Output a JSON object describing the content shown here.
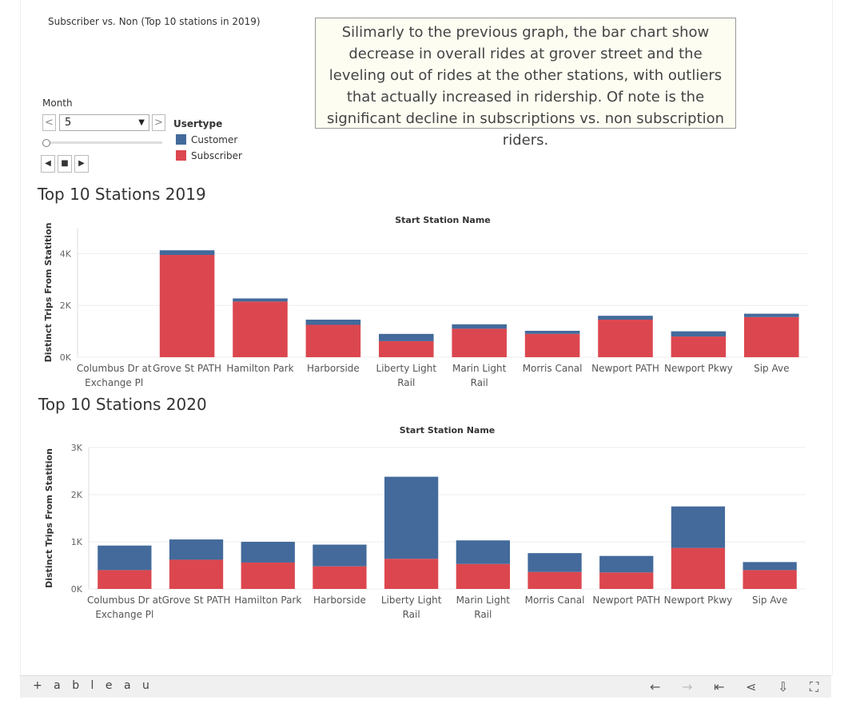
{
  "subtitle": "Subscriber vs. Non (Top 10 stations in 2019)",
  "annotation": "Silimarly to the previous graph, the bar chart show decrease in overall rides at grover street and the leveling out of rides at the other stations, with outliers that actually increased in ridership. Of note is the significant decline in subscriptions vs. non subscription riders.",
  "filter": {
    "title": "Month",
    "value": "5",
    "prev": "<",
    "next": ">"
  },
  "legend": {
    "title": "Usertype",
    "items": [
      {
        "label": "Customer",
        "color": "#436a9b"
      },
      {
        "label": "Subscriber",
        "color": "#dc474f"
      }
    ]
  },
  "footer": {
    "logo": "+ a b l e a u"
  },
  "chart_data": [
    {
      "type": "bar",
      "title": "Top 10 Stations 2019",
      "column_header": "Start Station Name",
      "ylabel": "Distinct Trips From Statition",
      "ylim": [
        0,
        5000
      ],
      "yticks": [
        0,
        2000,
        4000
      ],
      "ytick_labels": [
        "0K",
        "2K",
        "4K"
      ],
      "categories": [
        "Columbus Dr at Exchange Pl",
        "Grove St PATH",
        "Hamilton Park",
        "Harborside",
        "Liberty Light Rail",
        "Marin Light Rail",
        "Morris Canal",
        "Newport PATH",
        "Newport Pkwy",
        "Sip Ave"
      ],
      "series": [
        {
          "name": "Subscriber",
          "color": "#dc474f",
          "values": [
            0,
            3950,
            2150,
            1250,
            620,
            1100,
            900,
            1450,
            800,
            1550
          ]
        },
        {
          "name": "Customer",
          "color": "#436a9b",
          "values": [
            0,
            180,
            120,
            200,
            280,
            170,
            120,
            150,
            200,
            130
          ]
        }
      ]
    },
    {
      "type": "bar",
      "title": "Top 10 Stations 2020",
      "column_header": "Start Station Name",
      "ylabel": "Distinct Trips From Statition",
      "ylim": [
        0,
        3000
      ],
      "yticks": [
        0,
        1000,
        2000,
        3000
      ],
      "ytick_labels": [
        "0K",
        "1K",
        "2K",
        "3K"
      ],
      "categories": [
        "Columbus Dr at Exchange Pl",
        "Grove St PATH",
        "Hamilton Park",
        "Harborside",
        "Liberty Light Rail",
        "Marin Light Rail",
        "Morris Canal",
        "Newport PATH",
        "Newport Pkwy",
        "Sip Ave"
      ],
      "series": [
        {
          "name": "Subscriber",
          "color": "#dc474f",
          "values": [
            400,
            620,
            560,
            480,
            640,
            530,
            360,
            350,
            870,
            400
          ]
        },
        {
          "name": "Customer",
          "color": "#436a9b",
          "values": [
            520,
            430,
            440,
            460,
            1740,
            500,
            400,
            350,
            880,
            170
          ]
        }
      ]
    }
  ]
}
